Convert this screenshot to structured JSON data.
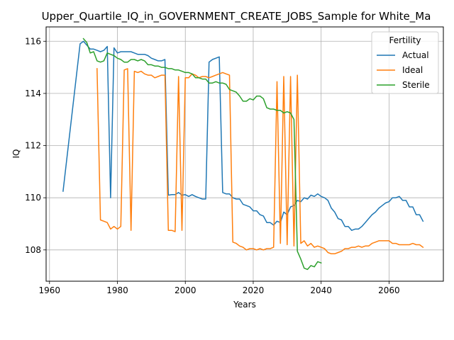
{
  "chart_data": {
    "type": "line",
    "title": "Upper_Quartile_IQ_in_GOVERNMENT_CREATE_JOBS_Sample for White_Ma",
    "xlabel": "Years",
    "ylabel": "IQ",
    "xlim": [
      1959,
      2076
    ],
    "ylim": [
      106.8,
      116.55
    ],
    "xticks": [
      1960,
      1980,
      2000,
      2020,
      2040,
      2060
    ],
    "yticks": [
      108,
      110,
      112,
      114,
      116
    ],
    "grid": true,
    "legend_title": "Fertility",
    "legend_position": "upper right",
    "series": [
      {
        "name": "Actual",
        "color": "#1f77b4",
        "x": [
          1964,
          1969,
          1970,
          1971,
          1972,
          1973,
          1974,
          1975,
          1976,
          1977,
          1978,
          1979,
          1980,
          1981,
          1982,
          1983,
          1984,
          1985,
          1986,
          1987,
          1988,
          1989,
          1990,
          1991,
          1992,
          1993,
          1994,
          1995,
          1996,
          1997,
          1998,
          1999,
          2000,
          2001,
          2002,
          2003,
          2004,
          2005,
          2006,
          2007,
          2008,
          2009,
          2010,
          2011,
          2012,
          2013,
          2014,
          2015,
          2016,
          2017,
          2018,
          2019,
          2020,
          2021,
          2022,
          2023,
          2024,
          2025,
          2026,
          2027,
          2028,
          2029,
          2030,
          2031,
          2032,
          2033,
          2034,
          2035,
          2036,
          2037,
          2038,
          2039,
          2040,
          2041,
          2042,
          2043,
          2044,
          2045,
          2046,
          2047,
          2048,
          2049,
          2050,
          2051,
          2052,
          2053,
          2054,
          2055,
          2056,
          2057,
          2058,
          2059,
          2060,
          2061,
          2062,
          2063,
          2064,
          2065,
          2066,
          2067,
          2068,
          2069,
          2070
        ],
        "values": [
          110.25,
          115.9,
          116.0,
          115.85,
          115.7,
          115.7,
          115.65,
          115.6,
          115.65,
          115.8,
          110.0,
          115.75,
          115.55,
          115.6,
          115.6,
          115.6,
          115.6,
          115.55,
          115.5,
          115.5,
          115.5,
          115.45,
          115.35,
          115.3,
          115.25,
          115.25,
          115.3,
          110.1,
          110.12,
          110.12,
          110.2,
          110.1,
          110.12,
          110.05,
          110.12,
          110.05,
          110.0,
          109.95,
          109.95,
          115.2,
          115.3,
          115.35,
          115.4,
          110.2,
          110.15,
          110.15,
          110.0,
          109.95,
          109.95,
          109.75,
          109.7,
          109.65,
          109.5,
          109.5,
          109.35,
          109.3,
          109.05,
          109.05,
          108.95,
          109.1,
          109.05,
          109.45,
          109.35,
          109.65,
          109.7,
          109.9,
          109.85,
          110.0,
          109.95,
          110.1,
          110.05,
          110.15,
          110.05,
          110.0,
          109.9,
          109.6,
          109.45,
          109.2,
          109.15,
          108.9,
          108.9,
          108.75,
          108.8,
          108.8,
          108.9,
          109.05,
          109.2,
          109.35,
          109.45,
          109.6,
          109.7,
          109.8,
          109.85,
          110.0,
          110.0,
          110.05,
          109.9,
          109.9,
          109.65,
          109.65,
          109.35,
          109.35,
          109.1
        ]
      },
      {
        "name": "Ideal",
        "color": "#ff7f0e",
        "x": [
          1974,
          1975,
          1976,
          1977,
          1978,
          1979,
          1980,
          1981,
          1982,
          1983,
          1984,
          1985,
          1986,
          1987,
          1988,
          1989,
          1990,
          1991,
          1992,
          1993,
          1994,
          1995,
          1996,
          1997,
          1998,
          1999,
          2000,
          2001,
          2002,
          2003,
          2004,
          2005,
          2006,
          2007,
          2008,
          2009,
          2010,
          2011,
          2012,
          2013,
          2014,
          2015,
          2016,
          2017,
          2018,
          2019,
          2020,
          2021,
          2022,
          2023,
          2024,
          2025,
          2026,
          2027,
          2028,
          2029,
          2030,
          2031,
          2032,
          2033,
          2034,
          2035,
          2036,
          2037,
          2038,
          2039,
          2040,
          2041,
          2042,
          2043,
          2044,
          2045,
          2046,
          2047,
          2048,
          2049,
          2050,
          2051,
          2052,
          2053,
          2054,
          2055,
          2056,
          2057,
          2058,
          2059,
          2060,
          2061,
          2062,
          2063,
          2064,
          2065,
          2066,
          2067,
          2068,
          2069,
          2070
        ],
        "values": [
          114.95,
          109.15,
          109.1,
          109.05,
          108.8,
          108.9,
          108.8,
          108.9,
          114.9,
          114.95,
          108.75,
          114.85,
          114.8,
          114.85,
          114.75,
          114.7,
          114.7,
          114.6,
          114.65,
          114.7,
          114.7,
          108.75,
          108.75,
          108.7,
          114.65,
          108.75,
          114.6,
          114.6,
          114.75,
          114.7,
          114.6,
          114.65,
          114.65,
          114.6,
          114.65,
          114.7,
          114.75,
          114.8,
          114.75,
          114.7,
          108.3,
          108.25,
          108.15,
          108.1,
          108.0,
          108.05,
          108.05,
          108.0,
          108.05,
          108.0,
          108.05,
          108.05,
          108.1,
          114.45,
          108.25,
          114.65,
          108.2,
          114.65,
          108.15,
          114.7,
          108.25,
          108.35,
          108.15,
          108.25,
          108.1,
          108.15,
          108.1,
          108.05,
          107.9,
          107.85,
          107.85,
          107.9,
          107.95,
          108.05,
          108.05,
          108.1,
          108.1,
          108.15,
          108.1,
          108.15,
          108.15,
          108.25,
          108.3,
          108.35,
          108.35,
          108.35,
          108.35,
          108.25,
          108.25,
          108.2,
          108.2,
          108.2,
          108.2,
          108.25,
          108.2,
          108.2,
          108.1
        ]
      },
      {
        "name": "Sterile",
        "color": "#2ca02c",
        "x": [
          1970,
          1971,
          1972,
          1973,
          1974,
          1975,
          1976,
          1977,
          1978,
          1979,
          1980,
          1981,
          1982,
          1983,
          1984,
          1985,
          1986,
          1987,
          1988,
          1989,
          1990,
          1991,
          1992,
          1993,
          1994,
          1995,
          1996,
          1997,
          1998,
          1999,
          2000,
          2001,
          2002,
          2003,
          2004,
          2005,
          2006,
          2007,
          2008,
          2009,
          2010,
          2011,
          2012,
          2013,
          2014,
          2015,
          2016,
          2017,
          2018,
          2019,
          2020,
          2021,
          2022,
          2023,
          2024,
          2025,
          2026,
          2027,
          2028,
          2029,
          2030,
          2031,
          2032,
          2033,
          2034,
          2035,
          2036,
          2037,
          2038,
          2039,
          2040
        ],
        "values": [
          116.1,
          115.95,
          115.55,
          115.6,
          115.25,
          115.2,
          115.25,
          115.55,
          115.5,
          115.45,
          115.35,
          115.3,
          115.2,
          115.2,
          115.3,
          115.3,
          115.25,
          115.3,
          115.25,
          115.1,
          115.1,
          115.05,
          115.05,
          115.0,
          115.0,
          114.95,
          114.95,
          114.9,
          114.9,
          114.85,
          114.8,
          114.8,
          114.75,
          114.6,
          114.6,
          114.55,
          114.55,
          114.4,
          114.4,
          114.45,
          114.4,
          114.4,
          114.35,
          114.15,
          114.1,
          114.05,
          113.9,
          113.7,
          113.7,
          113.8,
          113.75,
          113.9,
          113.9,
          113.8,
          113.45,
          113.4,
          113.4,
          113.35,
          113.35,
          113.25,
          113.3,
          113.25,
          113.0,
          107.95,
          107.65,
          107.3,
          107.25,
          107.4,
          107.35,
          107.55,
          107.5
        ]
      }
    ]
  }
}
